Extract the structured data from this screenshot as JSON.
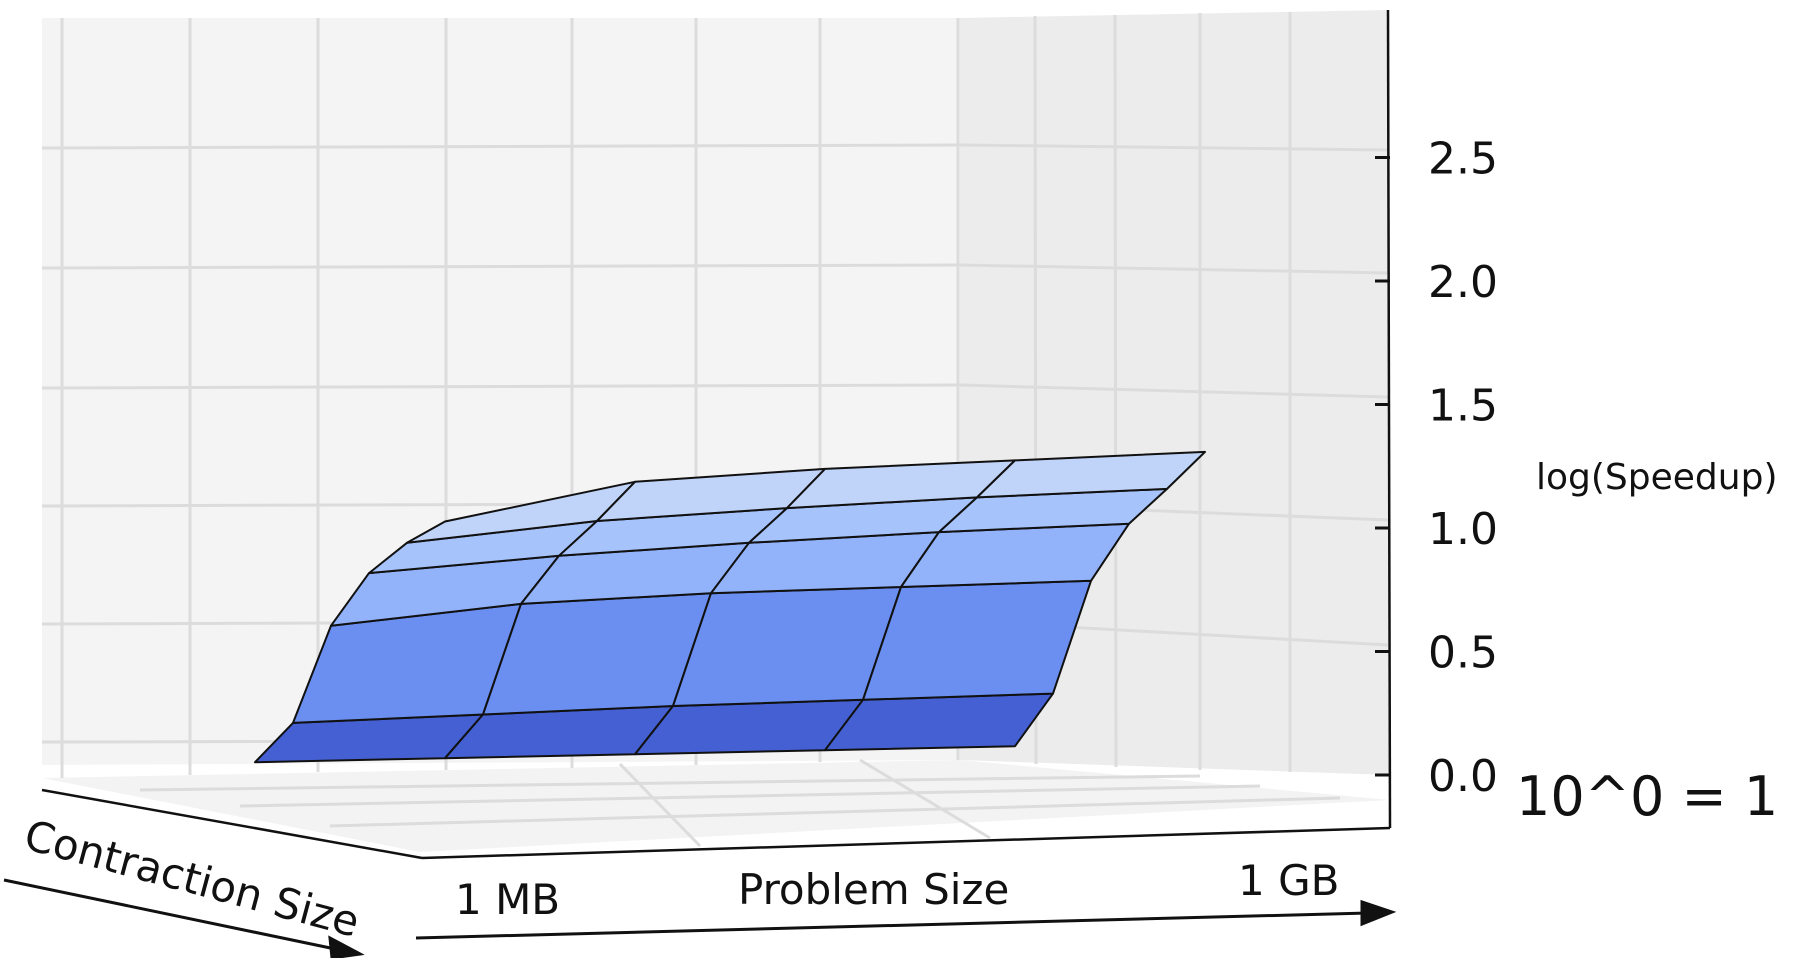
{
  "chart_data": {
    "type": "surface",
    "zlabel": "log(Speedup)",
    "xlabel": "Problem Size",
    "ylabel": "Contraction Size",
    "x_tick_labels": [
      "1 MB",
      "1 GB"
    ],
    "z_ticks": [
      "0.0",
      "0.5",
      "1.0",
      "1.5",
      "2.0",
      "2.5"
    ],
    "zlim": [
      0.0,
      3.0
    ],
    "annotation": "10^0 = 1",
    "grid": true,
    "surface_rows": [
      {
        "label": "front",
        "z": [
          0.08,
          0.08,
          0.08,
          0.08,
          0.08
        ]
      },
      {
        "label": "row2",
        "z": [
          0.22,
          0.24,
          0.26,
          0.27,
          0.28
        ]
      },
      {
        "label": "row3",
        "z": [
          0.62,
          0.7,
          0.73,
          0.74,
          0.75
        ]
      },
      {
        "label": "row4",
        "z": [
          0.82,
          0.88,
          0.92,
          0.95,
          0.97
        ]
      },
      {
        "label": "row5",
        "z": [
          0.92,
          1.0,
          1.04,
          1.07,
          1.09
        ]
      },
      {
        "label": "back",
        "z": [
          0.98,
          1.14,
          1.18,
          1.2,
          1.22
        ]
      }
    ],
    "colors": {
      "band_fills": [
        "#4460d2",
        "#6b8ff0",
        "#92b2fa",
        "#a6c3fc",
        "#c0d3f8"
      ],
      "edge": "#111111"
    }
  }
}
